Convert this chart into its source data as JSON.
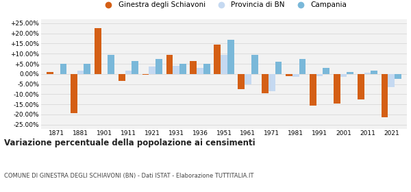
{
  "years": [
    1871,
    1881,
    1901,
    1911,
    1921,
    1931,
    1936,
    1951,
    1961,
    1971,
    1981,
    1991,
    2001,
    2011,
    2021
  ],
  "ginestra": [
    1.0,
    -19.5,
    22.5,
    -3.5,
    -0.5,
    9.5,
    6.5,
    14.5,
    -7.5,
    -9.5,
    -1.0,
    -15.5,
    -14.5,
    -12.5,
    -21.5
  ],
  "provincia": [
    0.0,
    1.5,
    0.0,
    1.5,
    3.5,
    4.0,
    3.0,
    9.5,
    -5.0,
    -8.5,
    -1.5,
    -1.0,
    -1.5,
    0.5,
    -6.5
  ],
  "campania": [
    5.0,
    5.0,
    9.5,
    6.5,
    7.5,
    5.0,
    5.0,
    17.0,
    9.5,
    6.0,
    7.5,
    3.0,
    1.0,
    1.5,
    -2.5
  ],
  "color_ginestra": "#d45f15",
  "color_provincia": "#c5d9f1",
  "color_campania": "#7ab8d9",
  "ylim": [
    -27,
    27
  ],
  "yticks": [
    -25,
    -20,
    -15,
    -10,
    -5,
    0,
    5,
    10,
    15,
    20,
    25
  ],
  "title": "Variazione percentuale della popolazione ai censimenti",
  "subtitle": "COMUNE DI GINESTRA DEGLI SCHIAVONI (BN) - Dati ISTAT - Elaborazione TUTTITALIA.IT",
  "legend_labels": [
    "Ginestra degli Schiavoni",
    "Provincia di BN",
    "Campania"
  ],
  "bg_color": "#f2f2f2",
  "grid_color": "#d8d8d8"
}
